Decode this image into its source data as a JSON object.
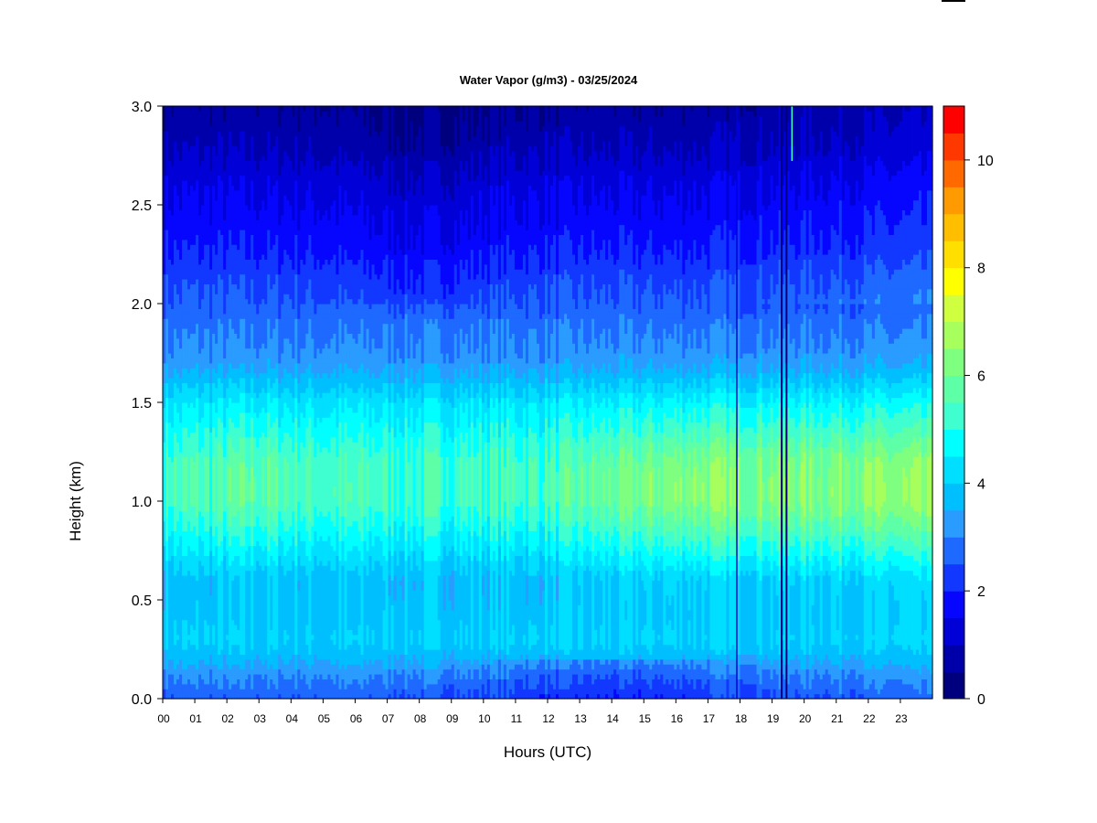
{
  "chart_data": {
    "type": "heatmap",
    "title": "Water Vapor (g/m3) - 03/25/2024",
    "xlabel": "Hours (UTC)",
    "ylabel": "Height (km)",
    "xlim": [
      0,
      24
    ],
    "ylim": [
      0.0,
      3.0
    ],
    "x_ticks": [
      "00",
      "01",
      "02",
      "03",
      "04",
      "05",
      "06",
      "07",
      "08",
      "09",
      "10",
      "11",
      "12",
      "13",
      "14",
      "15",
      "16",
      "17",
      "18",
      "19",
      "20",
      "21",
      "22",
      "23"
    ],
    "y_ticks": [
      "0.0",
      "0.5",
      "1.0",
      "1.5",
      "2.0",
      "2.5",
      "3.0"
    ],
    "colorbar": {
      "range": [
        0,
        11
      ],
      "step": 0.5,
      "tick_labels": [
        "0",
        "2",
        "4",
        "6",
        "8",
        "10"
      ],
      "tick_values": [
        0,
        2,
        4,
        6,
        8,
        10
      ],
      "colors": [
        "#00007f",
        "#0000ab",
        "#0000d7",
        "#0606ff",
        "#1238ff",
        "#1e69ff",
        "#2a9bff",
        "#00bfff",
        "#00dfff",
        "#00ffff",
        "#3fffd0",
        "#5dffa7",
        "#7fff7f",
        "#a7ff5d",
        "#d0ff3f",
        "#ffff00",
        "#ffdf00",
        "#ffbf00",
        "#ff9b00",
        "#ff6900",
        "#ff3800",
        "#ff0000",
        "#bf0000",
        "#7f0000"
      ]
    },
    "profile": {
      "description_heights_km": [
        0.0,
        0.1,
        0.2,
        0.3,
        0.4,
        0.6,
        0.8,
        1.0,
        1.2,
        1.5,
        1.7,
        1.9,
        2.1,
        2.3,
        2.6,
        2.8,
        3.0
      ],
      "typical_values_g_m3": [
        2.6,
        3.0,
        3.6,
        4.0,
        3.8,
        3.6,
        4.3,
        5.0,
        5.0,
        4.2,
        3.2,
        2.8,
        2.4,
        1.9,
        1.4,
        0.9,
        0.6
      ],
      "humid_peak_hours": [
        16.5,
        21.5
      ],
      "peak_value_g_m3": 6.0
    },
    "vertical_streaks_hours": [
      17.9,
      19.3,
      19.45
    ],
    "legend_position": "right colorbar"
  }
}
